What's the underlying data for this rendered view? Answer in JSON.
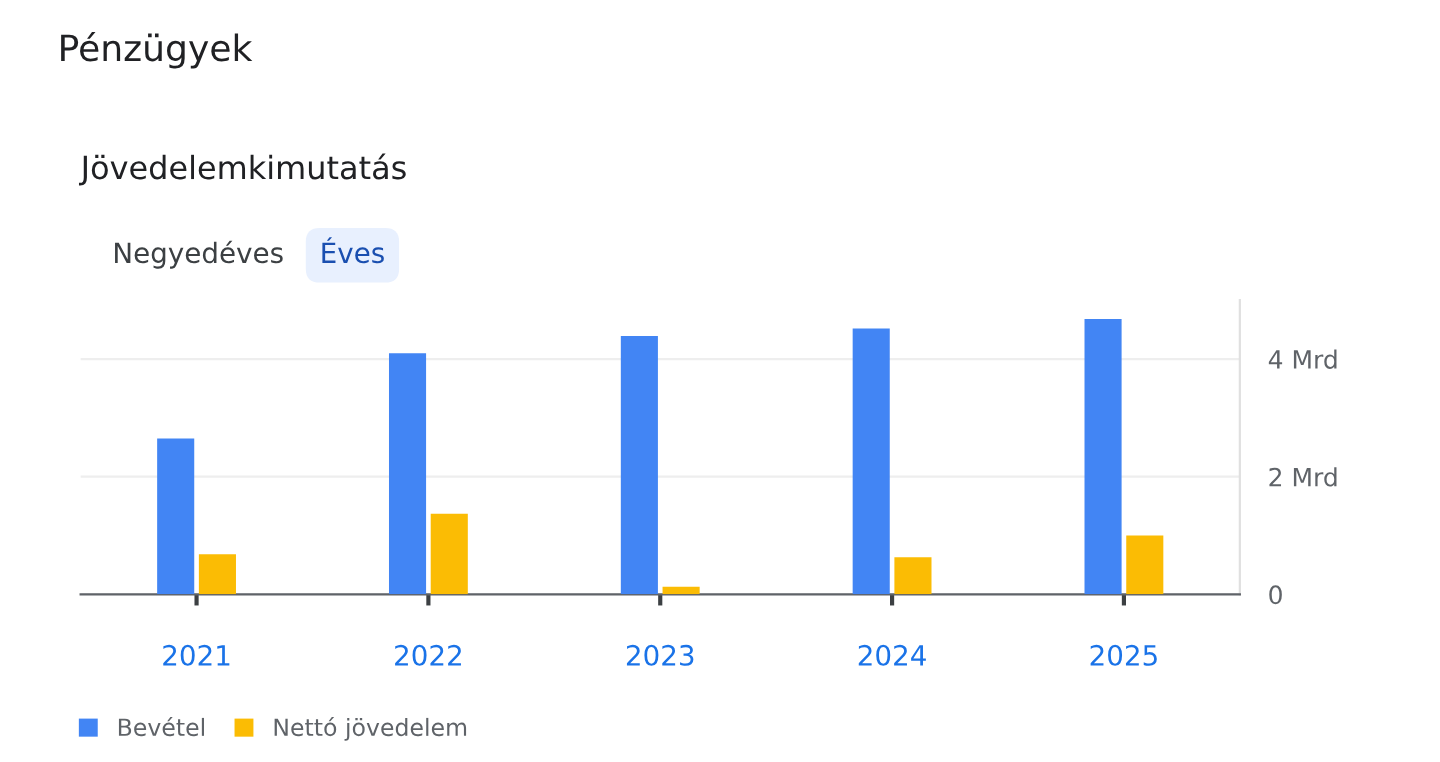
{
  "chart_data": {
    "type": "bar",
    "title": "Pénzügyek",
    "subtitle": "Jövedelemkimutatás",
    "annotations": [
      "Negyedéves",
      "Éves"
    ],
    "categories": [
      "2021",
      "2022",
      "2023",
      "2024",
      "2025"
    ],
    "series": [
      {
        "name": "Bevétel",
        "color": "#4285f4",
        "values": [
          2.65,
          4.1,
          4.39,
          4.52,
          4.68
        ]
      },
      {
        "name": "Nettó jövedelem",
        "color": "#fbbc04",
        "values": [
          0.68,
          1.37,
          0.13,
          0.63,
          1.0
        ]
      }
    ],
    "ylim": [
      0,
      5
    ],
    "yticks": [
      0,
      {
        "value": 2,
        "label": "2 Mrd"
      },
      {
        "value": 4,
        "label": "4 Mrd"
      }
    ],
    "grid": "y",
    "legend": "bottom left"
  }
}
